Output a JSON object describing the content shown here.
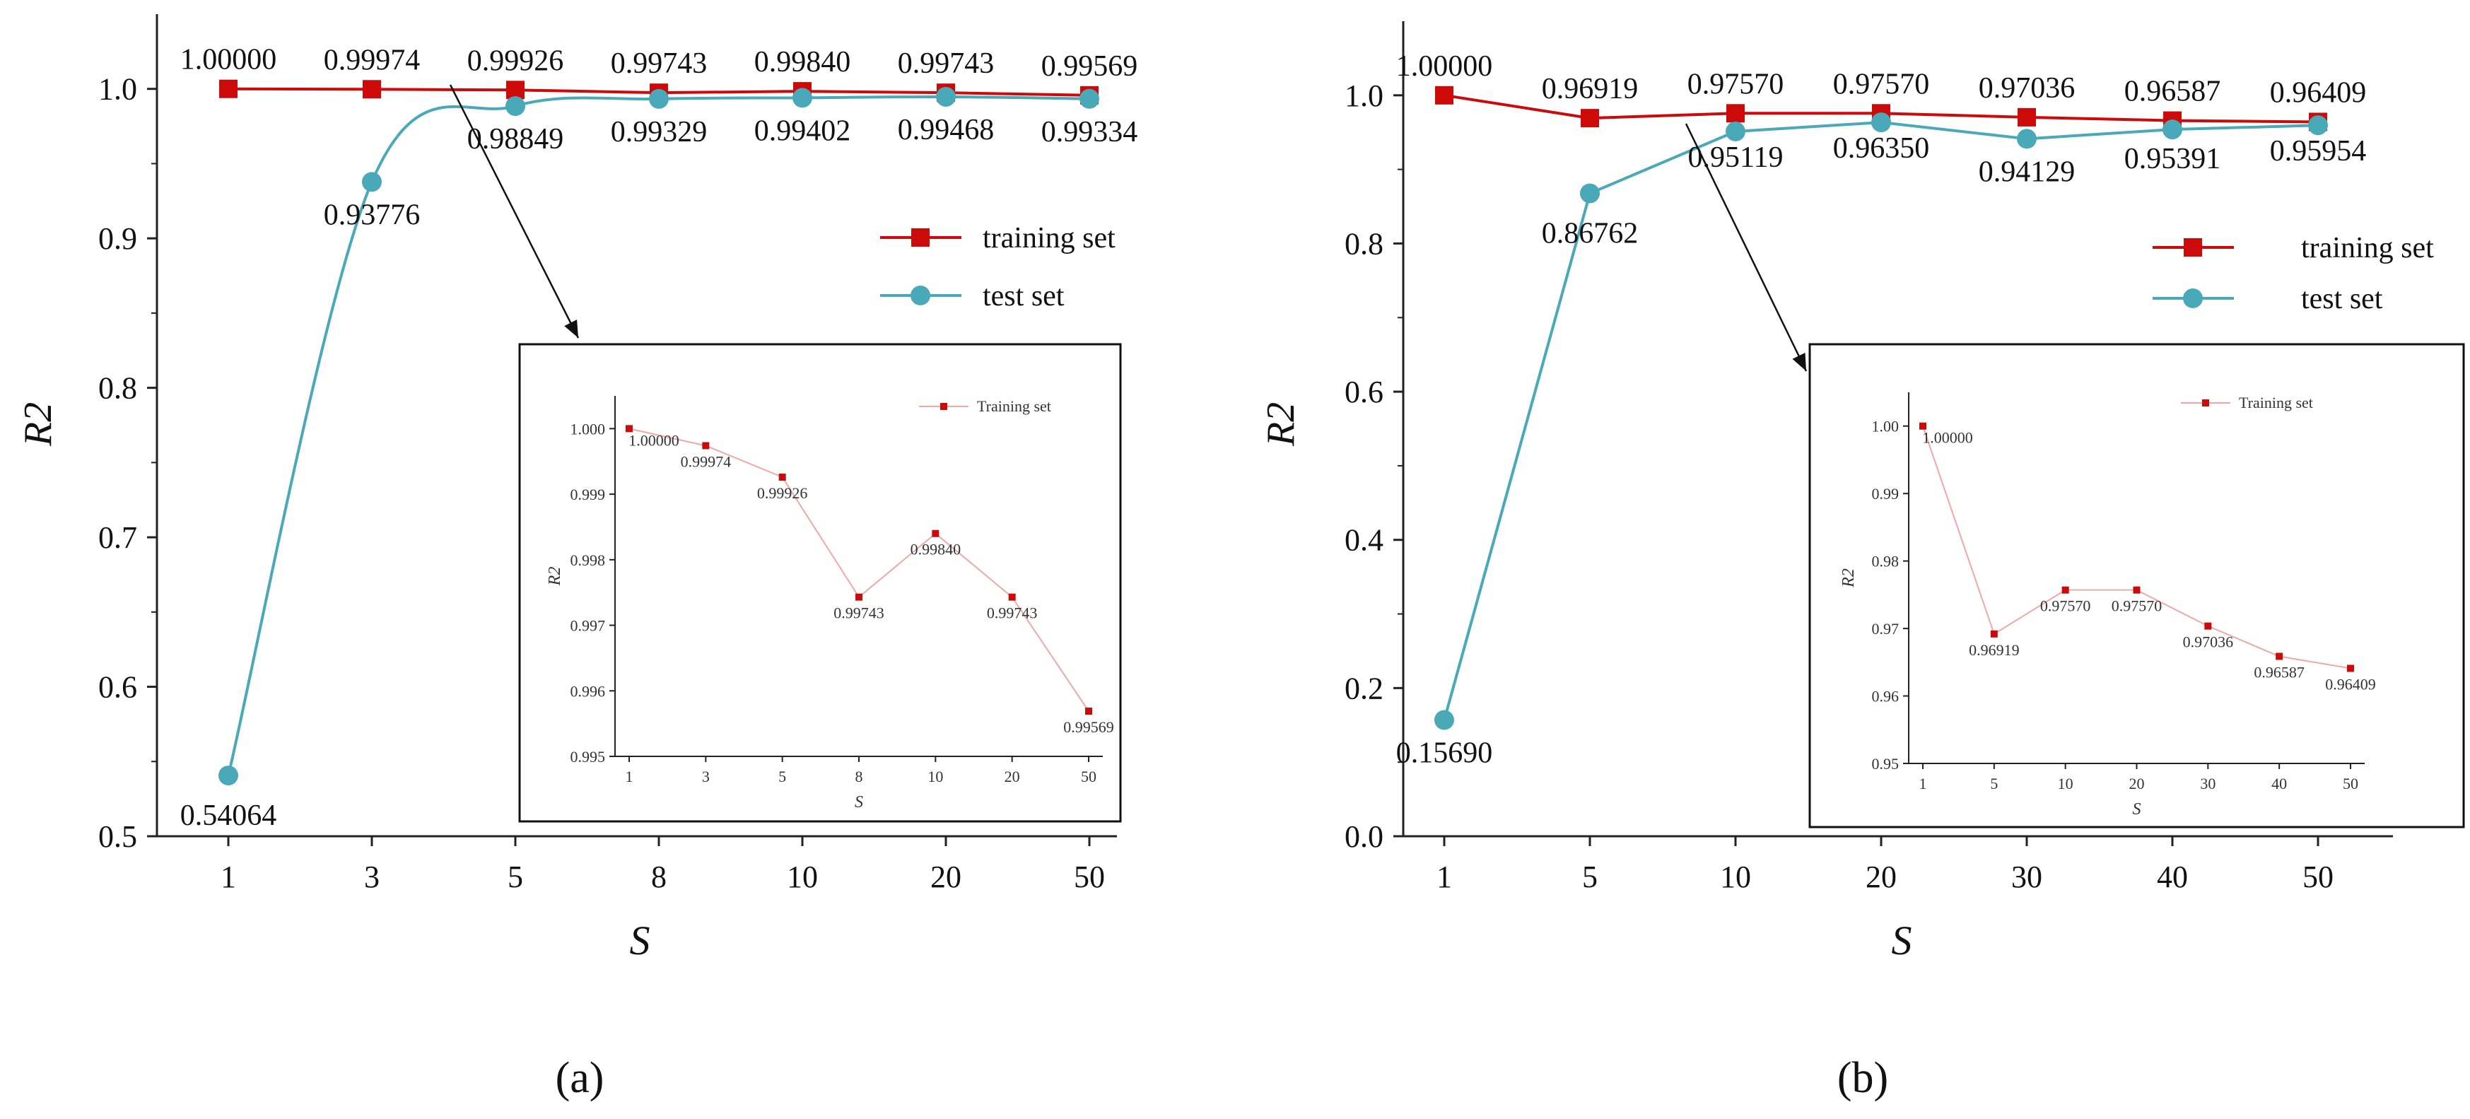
{
  "colors": {
    "training": "#cc0a0a",
    "test": "#4aa9b8",
    "axis": "#222222",
    "inset_line": "#f4a6a6",
    "inset_marker": "#cc0a0a"
  },
  "chart_data": [
    {
      "type": "line",
      "panel_label": "(a)",
      "xlabel": "S",
      "ylabel": "R2",
      "categories": [
        "1",
        "3",
        "5",
        "8",
        "10",
        "20",
        "50"
      ],
      "ylim": [
        0.5,
        1.05
      ],
      "yticks": [
        "0.5",
        "0.6",
        "0.7",
        "0.8",
        "0.9",
        "1.0"
      ],
      "series": [
        {
          "name": "training set",
          "values": [
            1.0,
            0.99974,
            0.99926,
            0.99743,
            0.9984,
            0.99743,
            0.99569
          ],
          "labels": [
            "1.00000",
            "0.99974",
            "0.99926",
            "0.99743",
            "0.99840",
            "0.99743",
            "0.99569"
          ]
        },
        {
          "name": "test set",
          "values": [
            0.54064,
            0.93776,
            0.98849,
            0.99329,
            0.99402,
            0.99468,
            0.99334
          ],
          "labels": [
            "0.54064",
            "0.93776",
            "0.98849",
            "0.99329",
            "0.99402",
            "0.99468",
            "0.99334"
          ]
        }
      ],
      "legend": [
        "training set",
        "test set"
      ],
      "inset": {
        "xlabel": "S",
        "ylabel": "R2",
        "legend": "Training set",
        "categories": [
          "1",
          "3",
          "5",
          "8",
          "10",
          "20",
          "50"
        ],
        "ylim": [
          0.995,
          1.0005
        ],
        "yticks": [
          "0.995",
          "0.996",
          "0.997",
          "0.998",
          "0.999",
          "1.000"
        ],
        "values": [
          1.0,
          0.99974,
          0.99926,
          0.99743,
          0.9984,
          0.99743,
          0.99569
        ],
        "labels": [
          "1.00000",
          "0.99974",
          "0.99926",
          "0.99743",
          "0.99840",
          "0.99743",
          "0.99569"
        ]
      }
    },
    {
      "type": "line",
      "panel_label": "(b)",
      "xlabel": "S",
      "ylabel": "R2",
      "categories": [
        "1",
        "5",
        "10",
        "20",
        "30",
        "40",
        "50"
      ],
      "ylim": [
        0.0,
        1.1
      ],
      "yticks": [
        "0.0",
        "0.2",
        "0.4",
        "0.6",
        "0.8",
        "1.0"
      ],
      "series": [
        {
          "name": "training set",
          "values": [
            1.0,
            0.96919,
            0.9757,
            0.9757,
            0.97036,
            0.96587,
            0.96409
          ],
          "labels": [
            "1.00000",
            "0.96919",
            "0.97570",
            "0.97570",
            "0.97036",
            "0.96587",
            "0.96409"
          ]
        },
        {
          "name": "test set",
          "values": [
            0.1569,
            0.86762,
            0.95119,
            0.9635,
            0.94129,
            0.95391,
            0.95954
          ],
          "labels": [
            "0.15690",
            "0.86762",
            "0.95119",
            "0.96350",
            "0.94129",
            "0.95391",
            "0.95954"
          ]
        }
      ],
      "legend": [
        "training set",
        "test set"
      ],
      "inset": {
        "xlabel": "S",
        "ylabel": "R2",
        "legend": "Training set",
        "categories": [
          "1",
          "5",
          "10",
          "20",
          "30",
          "40",
          "50"
        ],
        "ylim": [
          0.95,
          1.005
        ],
        "yticks": [
          "0.95",
          "0.96",
          "0.97",
          "0.98",
          "0.99",
          "1.00"
        ],
        "values": [
          1.0,
          0.96919,
          0.9757,
          0.9757,
          0.97036,
          0.96587,
          0.96409
        ],
        "labels": [
          "1.00000",
          "0.96919",
          "0.97570",
          "0.97570",
          "0.97036",
          "0.96587",
          "0.96409"
        ]
      }
    }
  ]
}
